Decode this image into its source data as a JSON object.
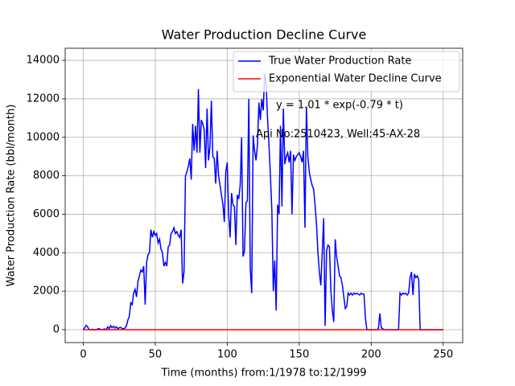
{
  "chart_data": {
    "type": "line",
    "title": "Water Production Decline Curve",
    "xlabel": "Time (months) from:1/1978 to:12/1999",
    "ylabel": "Water Production Rate (bbl/month)",
    "annotations": [
      "y = 1.01 * exp(-0.79 * t)",
      "Api No:2510423, Well:45-AX-28"
    ],
    "xlim": [
      -12.55,
      263.55
    ],
    "ylim": [
      -670,
      14630
    ],
    "xticks": [
      0,
      50,
      100,
      150,
      200,
      250
    ],
    "yticks": [
      0,
      2000,
      4000,
      6000,
      8000,
      10000,
      12000,
      14000
    ],
    "grid": true,
    "legend": "upper right",
    "series": [
      {
        "name": "True Water Production Rate",
        "color": "#0000ff",
        "x": [
          0,
          1,
          2,
          3,
          4,
          5,
          6,
          7,
          8,
          9,
          10,
          11,
          12,
          13,
          14,
          15,
          16,
          17,
          18,
          19,
          20,
          21,
          22,
          23,
          24,
          25,
          26,
          27,
          28,
          29,
          30,
          31,
          32,
          33,
          34,
          35,
          36,
          37,
          38,
          39,
          40,
          41,
          42,
          43,
          44,
          45,
          46,
          47,
          48,
          49,
          50,
          51,
          52,
          53,
          54,
          55,
          56,
          57,
          58,
          59,
          60,
          61,
          62,
          63,
          64,
          65,
          66,
          67,
          68,
          69,
          70,
          71,
          72,
          73,
          74,
          75,
          76,
          77,
          78,
          79,
          80,
          81,
          82,
          83,
          84,
          85,
          86,
          87,
          88,
          89,
          90,
          91,
          92,
          93,
          94,
          95,
          96,
          97,
          98,
          99,
          100,
          101,
          102,
          103,
          104,
          105,
          106,
          107,
          108,
          109,
          110,
          111,
          112,
          113,
          114,
          115,
          116,
          117,
          118,
          119,
          120,
          121,
          122,
          123,
          124,
          125,
          126,
          127,
          128,
          129,
          130,
          131,
          132,
          133,
          134,
          135,
          136,
          137,
          138,
          139,
          140,
          141,
          142,
          143,
          144,
          145,
          146,
          147,
          148,
          149,
          150,
          151,
          152,
          153,
          154,
          155,
          156,
          157,
          158,
          159,
          160,
          161,
          162,
          163,
          164,
          165,
          166,
          167,
          168,
          169,
          170,
          171,
          172,
          173,
          174,
          175,
          176,
          177,
          178,
          179,
          180,
          181,
          182,
          183,
          184,
          185,
          186,
          187,
          188,
          189,
          190,
          191,
          192,
          193,
          194,
          195,
          196,
          197,
          198,
          199,
          200,
          201,
          202,
          203,
          204,
          205,
          206,
          207,
          208,
          209,
          210,
          211,
          212,
          213,
          214,
          215,
          216,
          217,
          218,
          219,
          220,
          221,
          222,
          223,
          224,
          225,
          226,
          227,
          228,
          229,
          230,
          231,
          232,
          233,
          234,
          235,
          236,
          237,
          238,
          239,
          240,
          241,
          242,
          243,
          244,
          245,
          246,
          247,
          248,
          249,
          250
        ],
        "values": [
          0,
          100,
          220,
          150,
          0,
          0,
          20,
          10,
          0,
          0,
          30,
          60,
          10,
          0,
          20,
          40,
          0,
          150,
          50,
          210,
          100,
          180,
          80,
          150,
          50,
          100,
          120,
          60,
          50,
          80,
          200,
          500,
          700,
          1400,
          1300,
          1900,
          2100,
          1700,
          2500,
          2800,
          3100,
          3000,
          3300,
          1300,
          3500,
          3900,
          4000,
          5200,
          4800,
          5100,
          4900,
          5000,
          4500,
          4700,
          4200,
          4000,
          3300,
          3500,
          3300,
          4300,
          4400,
          5000,
          5100,
          5300,
          5000,
          5100,
          4900,
          4800,
          5200,
          2400,
          3000,
          8000,
          8200,
          8500,
          8900,
          7800,
          10700,
          9300,
          10600,
          9200,
          12500,
          9200,
          10900,
          10700,
          10400,
          8400,
          11500,
          8800,
          9500,
          11900,
          9000,
          8900,
          7600,
          9300,
          8000,
          7500,
          7000,
          6500,
          5600,
          8200,
          8700,
          6000,
          4800,
          7100,
          6500,
          6400,
          4400,
          7000,
          6800,
          7500,
          10000,
          3800,
          4100,
          6600,
          6700,
          12000,
          3200,
          1900,
          10100,
          9300,
          8800,
          9600,
          11800,
          10900,
          12000,
          11400,
          13300,
          12800,
          11000,
          9600,
          8000,
          6200,
          2000,
          3600,
          1000,
          6500,
          6000,
          10600,
          6400,
          11500,
          8600,
          9000,
          9200,
          8700,
          9300,
          6000,
          9100,
          8800,
          9000,
          9100,
          9200,
          9000,
          8700,
          9300,
          5300,
          11600,
          9000,
          8200,
          7800,
          7500,
          7300,
          6500,
          5500,
          4000,
          3000,
          2300,
          4000,
          5800,
          200,
          4100,
          4400,
          4300,
          2000,
          1000,
          400,
          4700,
          3800,
          3300,
          2800,
          2700,
          2300,
          1700,
          1100,
          1200,
          1900,
          1800,
          1900,
          1800,
          1900,
          1850,
          1900,
          1850,
          1800,
          1900,
          1850,
          1850,
          600,
          0,
          0,
          0,
          0,
          0,
          0,
          0,
          0,
          50,
          850,
          100,
          50,
          0,
          0,
          0,
          0,
          0,
          0,
          0,
          0,
          0,
          0,
          0,
          1900,
          1800,
          1900,
          1850,
          1900,
          1800,
          1900,
          2700,
          3000,
          1800,
          2900,
          2700,
          2800,
          2600,
          0,
          0,
          0,
          0,
          0,
          0,
          0,
          0,
          0,
          0,
          0,
          0,
          0,
          0,
          0,
          0,
          0
        ]
      },
      {
        "name": "Exponential Water Decline Curve",
        "color": "#ff0000",
        "x": [
          0,
          250
        ],
        "values": [
          1.01,
          0
        ]
      }
    ]
  }
}
